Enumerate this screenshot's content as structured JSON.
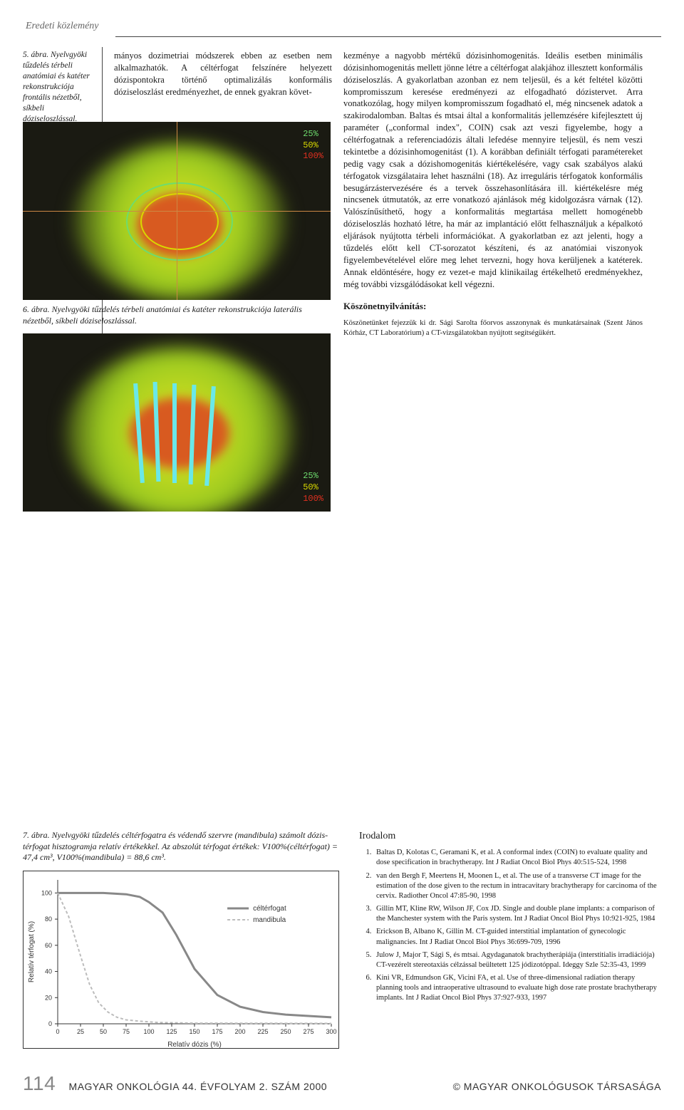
{
  "header": "Eredeti közlemény",
  "fig5_caption": "5. ábra. Nyelvgyöki tűzdelés térbeli anatómiai és katéter rekonstrukciója frontális nézetből, síkbeli dóziseloszlással.",
  "col_mid_para": "mányos dozimetriai módszerek ebben az esetben nem alkalmazhatók. A céltérfogat felszínére helyezett dózispontokra történő optimalizálás konformális dóziseloszlást eredményezhet, de ennek gyakran követ-",
  "col_right_para": "kezménye a nagyobb mértékű dózisinhomogenitás. Ideális esetben minimális dózisinhomogenitás mellett jönne létre a céltérfogat alakjához illesztett konformális dóziseloszlás. A gyakorlatban azonban ez nem teljesül, és a két feltétel közötti kompromisszum keresése eredményezi az elfogadható dózistervet. Arra vonatkozólag, hogy milyen kompromisszum fogadható el, még nincsenek adatok a szakirodalomban.  Baltas és mtsai által a konformalitás jellemzésére kifejlesztett új paraméter („conformal index\", COIN) csak azt veszi figyelembe, hogy a céltérfogatnak a referenciadózis általi lefedése mennyire teljesül, és nem veszi tekintetbe a dózisinhomogenitást (1).  A korábban definiált térfogati paramétereket pedig vagy csak a dózishomogenitás kiértékelésére, vagy csak szabályos alakú térfogatok vizsgálataira lehet használni (18). Az irreguláris térfogatok konformális besugárzástervezésére és a tervek összehasonlítására ill. kiértékelésre még nincsenek útmutatók, az erre vonatkozó ajánlások még kidolgozásra várnak (12). Valószínűsíthető, hogy a konformalitás megtartása mellett homogénebb dóziseloszlás hozható létre, ha már az implantáció előtt felhasználjuk a képalkotó eljárások nyújtotta térbeli információkat. A gyakorlatban ez azt jelenti, hogy a tűzdelés előtt kell CT-sorozatot készíteni, és az anatómiai viszonyok figyelembevételével előre meg lehet tervezni, hogy hova kerüljenek a katéterek. Annak eldöntésére, hogy ez vezet-e majd klinikailag értékelhető eredményekhez, még további vizsgálódásokat kell végezni.",
  "fig6_caption": "6. ábra. Nyelvgyöki tűzdelés térbeli anatómiai és katéter rekonstrukciója laterális nézetből, síkbeli dóziseloszlással.",
  "fig7_caption": "7. ábra. Nyelvgyöki tűzdelés céltérfogatra és védendő szervre (mandibula) számolt dózis-térfogat hisztogramja relatív értékekkel. Az abszolút térfogat értékek: V100%(céltérfogat) = 47,4 cm³, V100%(mandibula) = 88,6 cm³.",
  "ack_head": "Köszönetnyilvánítás:",
  "ack_body": "Köszönetünket fejezzük ki dr. Sági Sarolta főorvos asszonynak és munkatársainak (Szent János Kórház, CT Laboratórium) a CT-vizsgálatokban nyújtott segítségükért.",
  "fig_legend": {
    "l1": "25%",
    "l2": "50%",
    "l3": "100%"
  },
  "chart": {
    "type": "line",
    "xlabel": "Relatív dózis (%)",
    "ylabel": "Relatív térfogat (%)",
    "xlim": [
      0,
      300
    ],
    "xtick_step": 25,
    "ylim": [
      0,
      110
    ],
    "ytick_step": 20,
    "series": [
      {
        "name": "céltérfogat",
        "color": "#888888",
        "dash": "none",
        "width": 3,
        "x": [
          0,
          25,
          50,
          75,
          90,
          100,
          115,
          130,
          150,
          175,
          200,
          225,
          250,
          275,
          300
        ],
        "y": [
          100,
          100,
          100,
          99,
          97,
          93,
          85,
          68,
          42,
          22,
          13,
          9,
          7,
          6,
          5
        ]
      },
      {
        "name": "mandibula",
        "color": "#bcbcbc",
        "dash": "4 3",
        "width": 2,
        "x": [
          0,
          12,
          25,
          35,
          45,
          55,
          65,
          75,
          90,
          110,
          150,
          300
        ],
        "y": [
          100,
          82,
          52,
          30,
          16,
          9,
          5,
          3,
          2,
          1,
          0.5,
          0.3
        ]
      }
    ],
    "legend_pos": "right",
    "background_color": "#ffffff",
    "axis_color": "#333333",
    "tick_fontsize": 9,
    "label_fontsize": 10
  },
  "ref_head": "Irodalom",
  "refs": [
    "Baltas D, Kolotas C, Geramani K, et al. A conformal index (COIN) to evaluate quality and dose specification in brachytherapy. Int J Radiat Oncol Biol Phys 40:515-524, 1998",
    "van den Bergh F, Meertens H, Moonen L, et al. The use of a transverse CT image for the estimation of the dose given to the rectum in intracavitary brachytherapy for carcinoma of the cervix. Radiother Oncol 47:85-90, 1998",
    "Gillin MT, Kline RW, Wilson JF, Cox JD. Single and double plane implants: a comparison of the Manchester system with the Paris system. Int J Radiat Oncol Biol Phys 10:921-925, 1984",
    "Erickson B, Albano K, Gillin M. CT-guided interstitial implantation of gynecologic malignancies. Int J Radiat Oncol Biol Phys 36:699-709, 1996",
    "Julow J, Major T, Sági S, és mtsai. Agydaganatok brachytherápiája (interstitialis irradiációja) CT-vezérelt stereotaxiás célzással beültetett 125 jódizotóppal. Ideggy Szle 52:35-43, 1999",
    "Kini VR, Edmundson GK, Vicini FA, et al. Use of three-dimensional radiation therapy planning tools and intraoperative ultrasound to evaluate high dose rate prostate brachytherapy implants. Int J Radiat Oncol Biol Phys 37:927-933, 1997"
  ],
  "footer_page": "114",
  "footer_left": "MAGYAR ONKOLÓGIA  44. ÉVFOLYAM  2. SZÁM  2000",
  "footer_right": "© MAGYAR ONKOLÓGUSOK TÁRSASÁGA"
}
